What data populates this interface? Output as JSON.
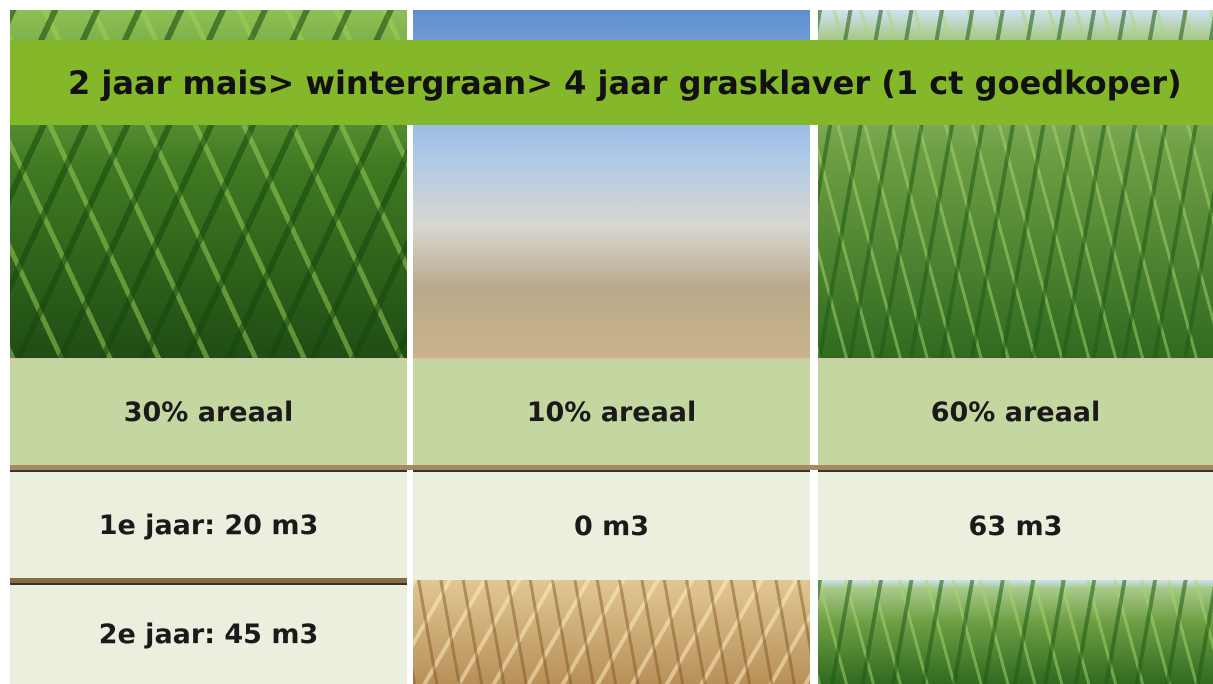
{
  "banner": {
    "title": "2 jaar mais> wintergraan> 4 jaar grasklaver (1 ct goedkoper)"
  },
  "table": {
    "rows": [
      [
        "30% areaal",
        "10% areaal",
        "60% areaal"
      ],
      [
        "1e jaar: 20 m3",
        "0 m3",
        "63 m3"
      ],
      [
        "2e jaar: 45 m3"
      ]
    ]
  }
}
